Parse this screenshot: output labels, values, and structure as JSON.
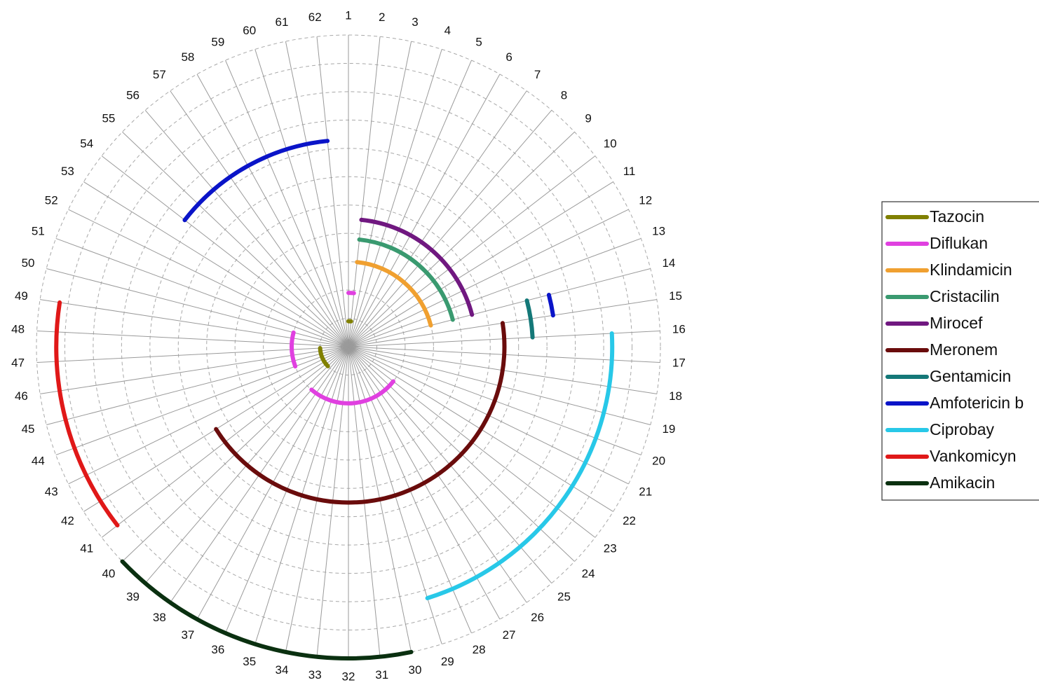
{
  "chart_data": {
    "type": "polar-arc",
    "title": "",
    "angular_ticks": [
      "1",
      "2",
      "3",
      "4",
      "5",
      "6",
      "7",
      "8",
      "9",
      "10",
      "11",
      "12",
      "13",
      "14",
      "15",
      "16",
      "17",
      "18",
      "19",
      "20",
      "21",
      "22",
      "23",
      "24",
      "25",
      "26",
      "27",
      "28",
      "29",
      "30",
      "31",
      "32",
      "33",
      "34",
      "35",
      "36",
      "37",
      "38",
      "39",
      "40",
      "41",
      "42",
      "43",
      "44",
      "45",
      "46",
      "47",
      "48",
      "49",
      "50",
      "51",
      "52",
      "53",
      "54",
      "55",
      "56",
      "57",
      "58",
      "59",
      "60",
      "61",
      "62"
    ],
    "radial_range": [
      0,
      11
    ],
    "grid": true,
    "legend_position": "right",
    "series": [
      {
        "name": "Tazocin",
        "color": "#808000",
        "arcs": [
          {
            "radius": 0.9,
            "from": 1,
            "to": 2
          },
          {
            "radius": 1.0,
            "from": 40,
            "to": 47
          }
        ]
      },
      {
        "name": "Diflukan",
        "color": "#e040e0",
        "arcs": [
          {
            "radius": 1.9,
            "from": 1,
            "to": 2
          },
          {
            "radius": 2.0,
            "from": 23,
            "to": 39
          },
          {
            "radius": 2.0,
            "from": 44,
            "to": 50
          }
        ]
      },
      {
        "name": "Klindamicin",
        "color": "#f0a030",
        "arcs": [
          {
            "radius": 3.0,
            "from": 2,
            "to": 14
          }
        ]
      },
      {
        "name": "Cristacilin",
        "color": "#3a9a70",
        "arcs": [
          {
            "radius": 3.8,
            "from": 2,
            "to": 14
          }
        ]
      },
      {
        "name": "Mirocef",
        "color": "#701880",
        "arcs": [
          {
            "radius": 4.5,
            "from": 2,
            "to": 14
          }
        ]
      },
      {
        "name": "Meronem",
        "color": "#6a0c0c",
        "arcs": [
          {
            "radius": 5.5,
            "from": 15,
            "to": 42
          }
        ]
      },
      {
        "name": "Gentamicin",
        "color": "#147878",
        "arcs": [
          {
            "radius": 6.5,
            "from": 14,
            "to": 16
          }
        ]
      },
      {
        "name": "Amfotericin b",
        "color": "#0a14c8",
        "arcs": [
          {
            "radius": 7.3,
            "from": 14,
            "to": 15
          },
          {
            "radius": 7.3,
            "from": 54,
            "to": 62
          }
        ]
      },
      {
        "name": "Ciprobay",
        "color": "#28c8e8",
        "arcs": [
          {
            "radius": 9.3,
            "from": 16,
            "to": 29
          }
        ]
      },
      {
        "name": "Vankomicyn",
        "color": "#e01818",
        "arcs": [
          {
            "radius": 10.3,
            "from": 41,
            "to": 49
          }
        ]
      },
      {
        "name": "Amikacin",
        "color": "#0a3010",
        "arcs": [
          {
            "radius": 11.0,
            "from": 30,
            "to": 40
          }
        ]
      }
    ]
  }
}
